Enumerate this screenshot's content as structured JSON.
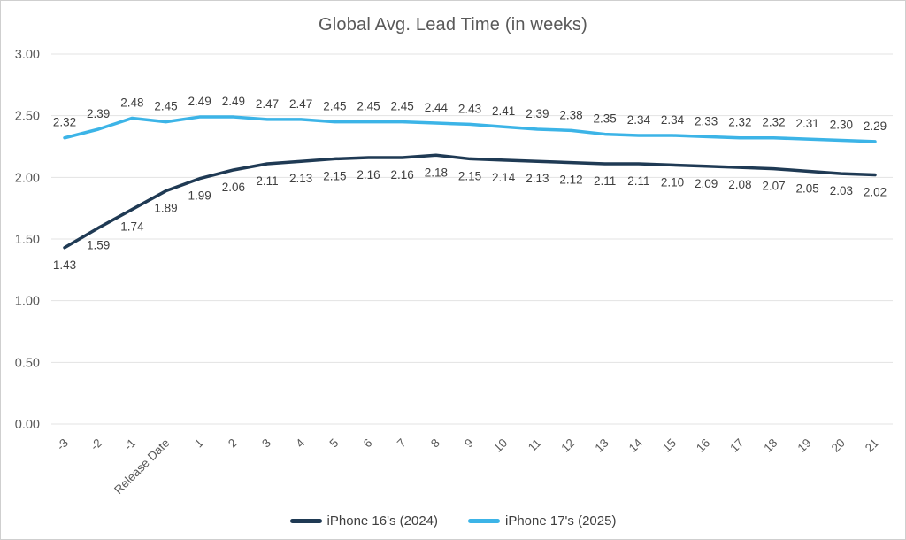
{
  "title": "Global Avg. Lead Time (in weeks)",
  "colors": {
    "background": "#ffffff",
    "frame_border": "#cfcfcf",
    "grid": "#e3e3e3",
    "axis_text": "#595959",
    "data_label_text": "#3f3f3f",
    "title_text": "#595959",
    "series1": "#1f3a54",
    "series2": "#3cb4e7"
  },
  "chart_data": {
    "type": "line",
    "title": "Global Avg. Lead Time (in weeks)",
    "categories": [
      "-3",
      "-2",
      "-1",
      "Release Date",
      "1",
      "2",
      "3",
      "4",
      "5",
      "6",
      "7",
      "8",
      "9",
      "10",
      "11",
      "12",
      "13",
      "14",
      "15",
      "16",
      "17",
      "18",
      "19",
      "20",
      "21"
    ],
    "xlabel": "",
    "ylabel": "",
    "ylim": [
      0,
      3
    ],
    "ytick_step": 0.5,
    "ytick_labels": [
      "0.00",
      "0.50",
      "1.00",
      "1.50",
      "2.00",
      "2.50",
      "3.00"
    ],
    "grid": true,
    "legend_position": "bottom",
    "x_label_rotation": -45,
    "series": [
      {
        "name": "iPhone 16's (2024)",
        "color": "#1f3a54",
        "data_labels": "below",
        "values": [
          1.43,
          1.59,
          1.74,
          1.89,
          1.99,
          2.06,
          2.11,
          2.13,
          2.15,
          2.16,
          2.16,
          2.18,
          2.15,
          2.14,
          2.13,
          2.12,
          2.11,
          2.11,
          2.1,
          2.09,
          2.08,
          2.07,
          2.05,
          2.03,
          2.02
        ]
      },
      {
        "name": "iPhone 17's (2025)",
        "color": "#3cb4e7",
        "data_labels": "above",
        "values": [
          2.32,
          2.39,
          2.48,
          2.45,
          2.49,
          2.49,
          2.47,
          2.47,
          2.45,
          2.45,
          2.45,
          2.44,
          2.43,
          2.41,
          2.39,
          2.38,
          2.35,
          2.34,
          2.34,
          2.33,
          2.32,
          2.32,
          2.31,
          2.3,
          2.29
        ]
      }
    ]
  }
}
